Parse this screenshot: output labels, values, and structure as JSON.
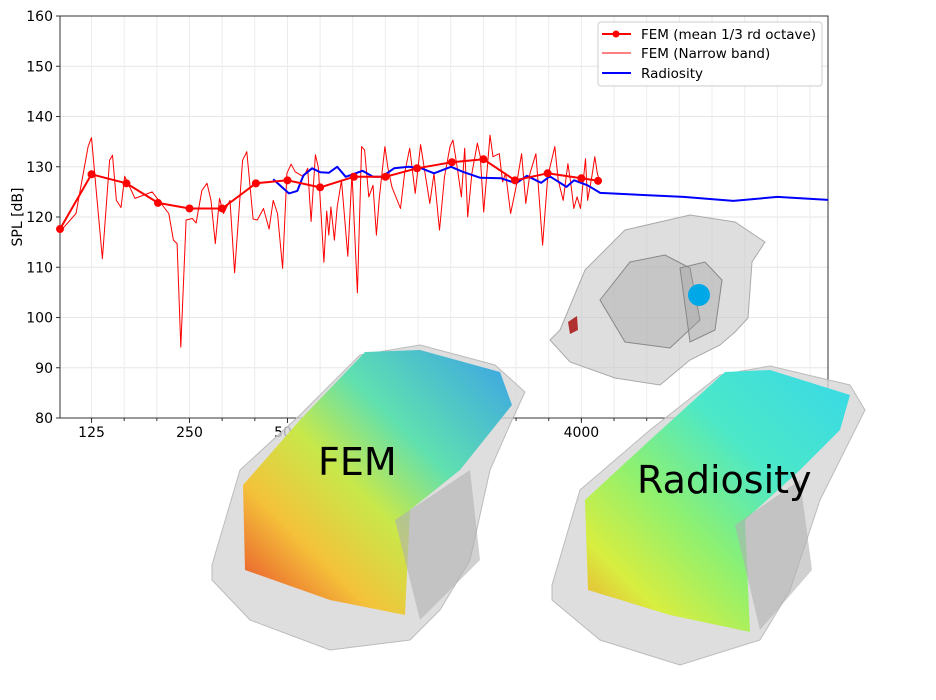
{
  "chart_data": {
    "type": "line",
    "title": "",
    "xlabel": "",
    "ylabel": "SPL [dB]",
    "xscale": "log",
    "xlim": [
      100,
      22900
    ],
    "ylim": [
      80,
      160
    ],
    "grid": true,
    "legend_position": "top-right",
    "xticks": [
      {
        "value": 125,
        "label": "125"
      },
      {
        "value": 250,
        "label": "250"
      },
      {
        "value": 500,
        "label": "500"
      },
      {
        "value": 4000,
        "label": "4000"
      }
    ],
    "yticks": [
      80,
      90,
      100,
      110,
      120,
      130,
      140,
      150,
      160
    ],
    "series": [
      {
        "name": "FEM (mean 1/3 rd octave)",
        "color": "#ff0000",
        "style": "line-marker",
        "x": [
          100,
          125,
          160,
          200,
          250,
          315,
          400,
          500,
          630,
          800,
          1000,
          1250,
          1600,
          2000,
          2500,
          3150,
          4000,
          4500
        ],
        "y": [
          117.6,
          128.5,
          126.7,
          122.8,
          121.7,
          121.7,
          126.7,
          127.3,
          125.9,
          128.0,
          128.0,
          129.7,
          130.9,
          131.5,
          127.3,
          128.7,
          127.7,
          127.2
        ]
      },
      {
        "name": "FEM (Narrow band)",
        "color": "#ff0000",
        "style": "thin-line",
        "x": [
          101,
          112,
          122,
          125,
          130,
          135,
          142,
          145,
          149,
          154,
          158,
          170,
          192,
          216,
          223,
          229,
          235,
          244,
          255,
          262,
          273,
          283,
          291,
          300,
          309,
          318,
          333,
          344,
          364,
          375,
          392,
          404,
          422,
          439,
          452,
          466,
          483,
          498,
          513,
          528,
          560,
          577,
          591,
          609,
          622,
          647,
          660,
          670,
          680,
          697,
          711,
          733,
          766,
          789,
          820,
          845,
          863,
          889,
          916,
          938,
          958,
          996,
          1017,
          1047,
          1112,
          1145,
          1187,
          1234,
          1282,
          1329,
          1369,
          1410,
          1466,
          1519,
          1579,
          1612,
          1661,
          1711,
          1752,
          1790,
          1844,
          1917,
          1957,
          2004,
          2095,
          2140,
          2238,
          2291,
          2340,
          2425,
          2520,
          2620,
          2699,
          2780,
          2899,
          2951,
          3040,
          3151,
          3314,
          3394,
          3517,
          3635,
          3711,
          3790,
          3881,
          3975,
          4119,
          4180,
          4306,
          4397,
          4477,
          4570
        ],
        "y": [
          117.4,
          120.7,
          134.0,
          135.8,
          123.3,
          111.7,
          131.3,
          132.3,
          123.3,
          121.9,
          128.1,
          123.7,
          125.0,
          120.7,
          115.4,
          114.7,
          94.1,
          119.4,
          119.7,
          118.8,
          125.3,
          126.7,
          123.3,
          114.7,
          123.7,
          120.7,
          123.3,
          108.9,
          131.3,
          133.0,
          119.6,
          119.4,
          121.7,
          117.6,
          123.3,
          120.7,
          109.8,
          128.7,
          130.5,
          129.0,
          128.0,
          129.7,
          119.1,
          132.4,
          129.9,
          111.0,
          121.2,
          116.4,
          122.0,
          115.4,
          122.0,
          127.3,
          112.2,
          128.7,
          104.9,
          134.0,
          133.3,
          124.0,
          126.3,
          116.4,
          124.0,
          134.0,
          129.9,
          126.0,
          121.7,
          128.7,
          133.7,
          124.7,
          134.4,
          128.0,
          122.7,
          128.7,
          117.4,
          128.0,
          134.0,
          135.3,
          129.9,
          124.0,
          133.7,
          120.0,
          128.7,
          134.7,
          132.0,
          121.0,
          136.3,
          132.0,
          132.6,
          127.0,
          128.7,
          120.7,
          126.0,
          132.6,
          122.7,
          128.7,
          132.6,
          126.0,
          114.4,
          128.0,
          134.0,
          127.3,
          123.3,
          130.6,
          126.7,
          121.7,
          124.0,
          121.7,
          131.6,
          123.3,
          128.0,
          132.0,
          128.7,
          126.7
        ]
      },
      {
        "name": "Radiosity",
        "color": "#0000ff",
        "style": "line",
        "x": [
          452,
          505,
          536,
          560,
          595,
          631,
          670,
          711,
          755,
          850,
          916,
          975,
          1063,
          1180,
          1290,
          1410,
          1590,
          1730,
          1957,
          2270,
          2520,
          2720,
          3010,
          3198,
          3600,
          3800,
          4180,
          4570,
          8230,
          11720,
          16000,
          22900
        ],
        "y": [
          127.5,
          124.7,
          125.2,
          128.3,
          129.7,
          128.9,
          128.8,
          130.0,
          128.0,
          129.2,
          128.0,
          128.0,
          129.7,
          130.0,
          129.7,
          128.7,
          130.0,
          129.0,
          127.8,
          127.7,
          126.7,
          128.2,
          126.8,
          128.1,
          126.0,
          127.3,
          126.3,
          124.8,
          124.0,
          123.2,
          124.0,
          123.4
        ]
      }
    ]
  },
  "overlays": {
    "fem_label": "FEM",
    "radiosity_label": "Radiosity"
  }
}
